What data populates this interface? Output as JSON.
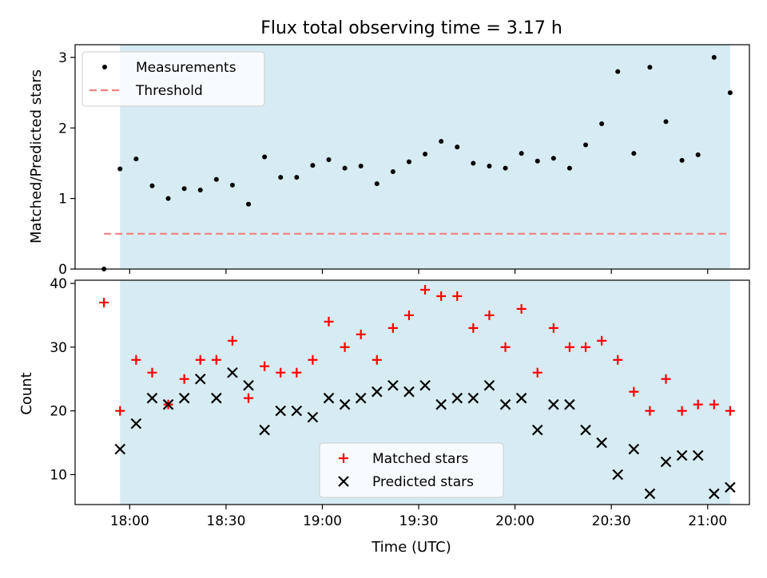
{
  "chart_data": [
    {
      "type": "scatter",
      "title": "Flux total observing time = 3.17 h",
      "ylabel": "Matched/Predicted stars",
      "ylim": [
        0,
        3.18
      ],
      "yticks": [
        0,
        1,
        2,
        3
      ],
      "shaded_x_range": [
        "17:57",
        "21:07"
      ],
      "shade_color": "#add8e6",
      "legend_position": "upper left",
      "series": [
        {
          "name": "Measurements",
          "marker": "dot",
          "color": "#000000",
          "x": [
            "17:52",
            "17:57",
            "18:02",
            "18:07",
            "18:12",
            "18:17",
            "18:22",
            "18:27",
            "18:32",
            "18:37",
            "18:42",
            "18:47",
            "18:52",
            "18:57",
            "19:02",
            "19:07",
            "19:12",
            "19:17",
            "19:22",
            "19:27",
            "19:32",
            "19:37",
            "19:42",
            "19:47",
            "19:52",
            "19:57",
            "20:02",
            "20:07",
            "20:12",
            "20:17",
            "20:22",
            "20:27",
            "20:32",
            "20:37",
            "20:42",
            "20:47",
            "20:52",
            "20:57",
            "21:02",
            "21:07"
          ],
          "y": [
            0,
            1.42,
            1.56,
            1.18,
            1.0,
            1.14,
            1.12,
            1.27,
            1.19,
            0.92,
            1.59,
            1.3,
            1.3,
            1.47,
            1.55,
            1.43,
            1.46,
            1.21,
            1.38,
            1.52,
            1.63,
            1.81,
            1.73,
            1.5,
            1.46,
            1.43,
            1.64,
            1.53,
            1.57,
            1.43,
            1.76,
            2.06,
            2.8,
            1.64,
            2.86,
            2.09,
            1.54,
            1.62,
            3.0,
            2.5
          ]
        },
        {
          "name": "Threshold",
          "style": "dashed",
          "color": "#f08080",
          "x": [
            "17:52",
            "21:07"
          ],
          "y": [
            0.5,
            0.5
          ]
        }
      ]
    },
    {
      "type": "scatter",
      "xlabel": "Time (UTC)",
      "ylabel": "Count",
      "ylim": [
        5.3,
        40.5
      ],
      "yticks": [
        10,
        20,
        30,
        40
      ],
      "xticks": [
        "18:00",
        "18:30",
        "19:00",
        "19:30",
        "20:00",
        "20:30",
        "21:00"
      ],
      "xlim": [
        "17:43",
        "21:13"
      ],
      "shaded_x_range": [
        "17:57",
        "21:07"
      ],
      "shade_color": "#add8e6",
      "legend_position": "lower center",
      "x": [
        "17:52",
        "17:57",
        "18:02",
        "18:07",
        "18:12",
        "18:17",
        "18:22",
        "18:27",
        "18:32",
        "18:37",
        "18:42",
        "18:47",
        "18:52",
        "18:57",
        "19:02",
        "19:07",
        "19:12",
        "19:17",
        "19:22",
        "19:27",
        "19:32",
        "19:37",
        "19:42",
        "19:47",
        "19:52",
        "19:57",
        "20:02",
        "20:07",
        "20:12",
        "20:17",
        "20:22",
        "20:27",
        "20:32",
        "20:37",
        "20:42",
        "20:47",
        "20:52",
        "20:57",
        "21:02",
        "21:07"
      ],
      "series": [
        {
          "name": "Matched stars",
          "marker": "plus",
          "color": "#ff0000",
          "values": [
            37,
            20,
            28,
            26,
            21,
            25,
            28,
            28,
            31,
            22,
            27,
            26,
            26,
            28,
            34,
            30,
            32,
            28,
            33,
            35,
            39,
            38,
            38,
            33,
            35,
            30,
            36,
            26,
            33,
            30,
            30,
            31,
            28,
            23,
            20,
            25,
            20,
            21,
            21,
            20
          ]
        },
        {
          "name": "Predicted stars",
          "marker": "x",
          "color": "#000000",
          "values": [
            null,
            14,
            18,
            22,
            21,
            22,
            25,
            22,
            26,
            24,
            17,
            20,
            20,
            19,
            22,
            21,
            22,
            23,
            24,
            23,
            24,
            21,
            22,
            22,
            24,
            21,
            22,
            17,
            21,
            21,
            17,
            15,
            10,
            14,
            7,
            12,
            13,
            13,
            7,
            8
          ]
        }
      ]
    }
  ]
}
